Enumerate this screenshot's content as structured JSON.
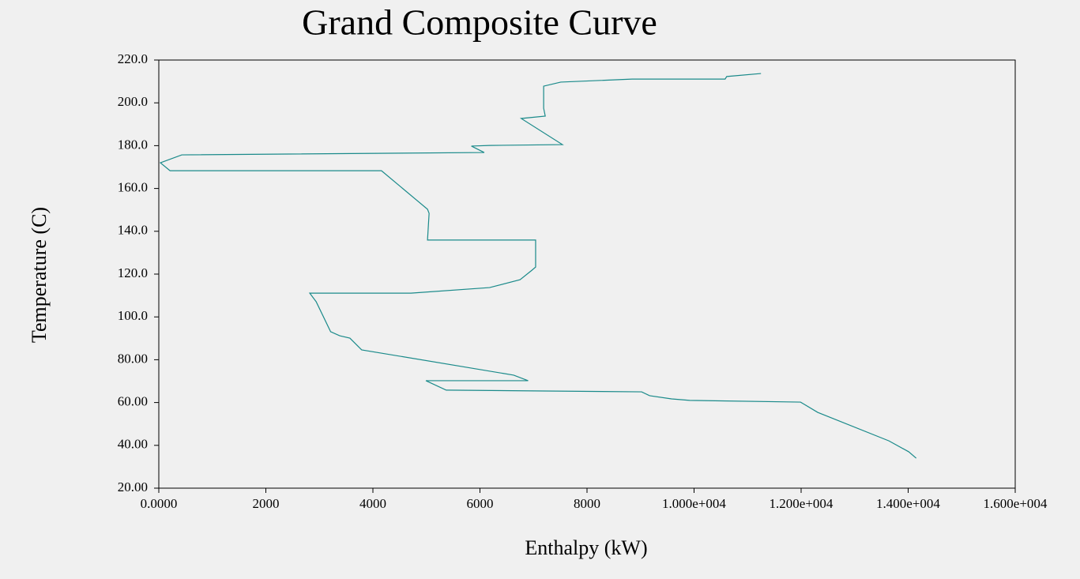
{
  "chart_data": {
    "type": "line",
    "title": "Grand Composite Curve",
    "x_label": "Enthalpy (kW)",
    "y_label": "Temperature (C)",
    "color": "#1a8a8a",
    "x": [
      11250,
      10610,
      10580,
      8840,
      7510,
      7190,
      7190,
      7220,
      6770,
      7540,
      6180,
      5840,
      6080,
      430,
      30,
      210,
      4160,
      5020,
      5050,
      5020,
      7040,
      7040,
      6970,
      6750,
      6180,
      4710,
      2820,
      2940,
      3210,
      3380,
      3570,
      3790,
      6630,
      6900,
      4990,
      5370,
      7220,
      9020,
      9170,
      9580,
      9920,
      11990,
      12310,
      13640,
      14010,
      14150
    ],
    "values": [
      213.7,
      212.3,
      211.1,
      211.1,
      209.7,
      207.8,
      197.5,
      193.8,
      192.7,
      180.5,
      180.1,
      179.8,
      176.8,
      175.7,
      172.0,
      168.3,
      168.3,
      150.3,
      148.4,
      135.9,
      135.9,
      123.3,
      121.8,
      117.4,
      113.7,
      111.1,
      111.1,
      107.1,
      93.1,
      91.2,
      90.1,
      84.6,
      72.8,
      70.2,
      70.2,
      65.8,
      65.4,
      65.0,
      63.2,
      61.7,
      61.0,
      60.2,
      55.4,
      42.1,
      37.0,
      34.0
    ],
    "xlim": [
      0,
      16000
    ],
    "xticks": [
      {
        "value": 0,
        "label": "0.0000"
      },
      2000,
      4000,
      6000,
      8000,
      {
        "value": 10000,
        "label": "1.000e+004"
      },
      {
        "value": 12000,
        "label": "1.200e+004"
      },
      {
        "value": 14000,
        "label": "1.400e+004"
      },
      {
        "value": 16000,
        "label": "1.600e+004"
      }
    ],
    "ylim": [
      20,
      220
    ],
    "yticks": [
      {
        "value": 20,
        "label": "20.00"
      },
      {
        "value": 40,
        "label": "40.00"
      },
      {
        "value": 60,
        "label": "60.00"
      },
      {
        "value": 80,
        "label": "80.00"
      },
      {
        "value": 100,
        "label": "100.0"
      },
      {
        "value": 120,
        "label": "120.0"
      },
      {
        "value": 140,
        "label": "140.0"
      },
      {
        "value": 160,
        "label": "160.0"
      },
      {
        "value": 180,
        "label": "180.0"
      },
      {
        "value": 200,
        "label": "200.0"
      },
      {
        "value": 220,
        "label": "220.0"
      }
    ]
  }
}
